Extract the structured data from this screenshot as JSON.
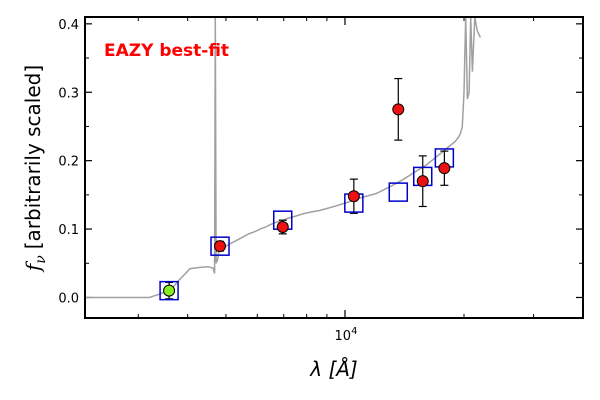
{
  "chart_data": {
    "type": "scatter",
    "title": "",
    "xlabel": "λ [Å]",
    "ylabel_symbol": "f",
    "ylabel_subscript": "ν",
    "ylabel_text": "[arbitrarily scaled]",
    "annotation": "EAZY best-fit",
    "x_scale": "log",
    "xlim": [
      2200,
      40000
    ],
    "ylim": [
      -0.03,
      0.41
    ],
    "x_tick_label_base": "10",
    "x_tick_label_exp": "4",
    "x_tick_label_value": 10000,
    "y_ticks": [
      0.0,
      0.1,
      0.2,
      0.3,
      0.4
    ],
    "y_tick_labels": [
      "0.0",
      "0.1",
      "0.2",
      "0.3",
      "0.4"
    ],
    "colors": {
      "model": "#a0a0a0",
      "model_phot": "#0000cc",
      "observed": "#ee1111",
      "highlight": "#88ee22",
      "annotation": "#ff0000"
    },
    "model_photometry": {
      "x": [
        3590,
        4830,
        6960,
        10530,
        13640,
        15730,
        17840
      ],
      "y": [
        0.01,
        0.075,
        0.113,
        0.138,
        0.154,
        0.177,
        0.204
      ]
    },
    "observed_photometry": {
      "x": [
        3590,
        4830,
        6960,
        10530,
        13640,
        15730,
        17840
      ],
      "y": [
        0.01,
        0.075,
        0.103,
        0.148,
        0.275,
        0.17,
        0.189
      ],
      "yerr": [
        0.012,
        0.007,
        0.01,
        0.025,
        0.045,
        0.037,
        0.025
      ],
      "marker_colors": [
        "#88ee22",
        "#ee1111",
        "#ee1111",
        "#ee1111",
        "#ee1111",
        "#ee1111",
        "#ee1111"
      ]
    },
    "model_sed": {
      "x": [
        2200,
        2500,
        2800,
        3000,
        3200,
        3400,
        3500,
        3600,
        3700,
        3800,
        3950,
        4050,
        4150,
        4300,
        4500,
        4640,
        4680,
        4700,
        4720,
        4760,
        4780,
        4790,
        4800,
        4900,
        5100,
        5300,
        5500,
        5700,
        5900,
        6100,
        6300,
        6500,
        6700,
        6900,
        7200,
        7500,
        7800,
        8200,
        8600,
        9000,
        9500,
        10000,
        10500,
        11000,
        11500,
        12000,
        13000,
        14000,
        15000,
        16000,
        17000,
        18000,
        19000,
        19400,
        19600,
        19800,
        20000,
        20200,
        20400,
        20600,
        20800,
        21000,
        21300,
        21600,
        22000
      ],
      "y": [
        0.0,
        0.0,
        0.0,
        0.0,
        0.0,
        0.005,
        0.008,
        0.012,
        0.017,
        0.025,
        0.035,
        0.042,
        0.043,
        0.044,
        0.045,
        0.043,
        0.035,
        0.41,
        0.05,
        0.055,
        0.06,
        0.065,
        0.068,
        0.072,
        0.078,
        0.083,
        0.088,
        0.093,
        0.096,
        0.1,
        0.103,
        0.107,
        0.11,
        0.112,
        0.116,
        0.119,
        0.122,
        0.125,
        0.127,
        0.13,
        0.134,
        0.138,
        0.142,
        0.146,
        0.149,
        0.152,
        0.162,
        0.172,
        0.183,
        0.193,
        0.205,
        0.217,
        0.228,
        0.235,
        0.24,
        0.25,
        0.3,
        0.41,
        0.29,
        0.3,
        0.41,
        0.33,
        0.41,
        0.39,
        0.38
      ]
    }
  }
}
